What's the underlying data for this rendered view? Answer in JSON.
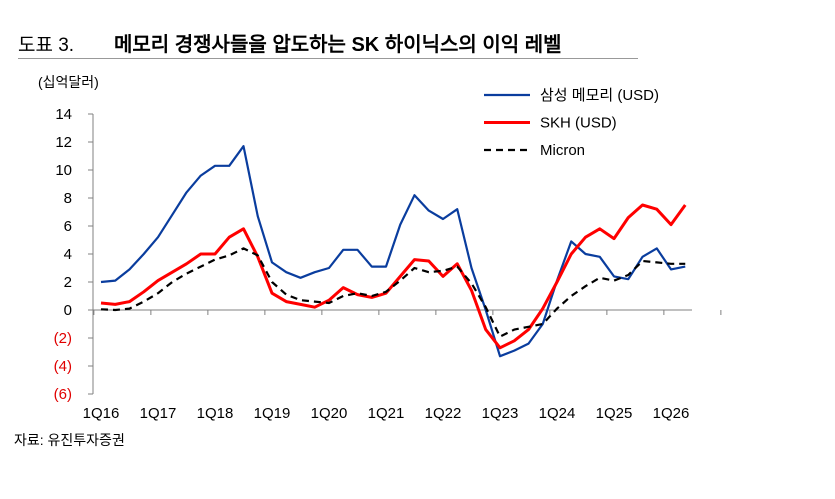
{
  "title": {
    "number": "도표 3.",
    "text": "메모리 경쟁사들을 압도하는 SK 하이닉스의 이익 레벨"
  },
  "unit_label": "(십억달러)",
  "source": "자료: 유진투자증권",
  "chart_data": {
    "type": "line",
    "title": "메모리 경쟁사들을 압도하는 SK 하이닉스의 이익 레벨",
    "ylabel": "(십억달러)",
    "ylim": [
      -6,
      14
    ],
    "yticks": [
      14,
      12,
      10,
      8,
      6,
      4,
      2,
      0,
      -2,
      -4,
      -6
    ],
    "ytick_labels": [
      "14",
      "12",
      "10",
      "8",
      "6",
      "4",
      "2",
      "0",
      "(2)",
      "(4)",
      "(6)"
    ],
    "xtick_labels": [
      "1Q16",
      "1Q17",
      "1Q18",
      "1Q19",
      "1Q20",
      "1Q21",
      "1Q22",
      "1Q23",
      "1Q24",
      "1Q25",
      "1Q26"
    ],
    "x": [
      "1Q16",
      "2Q16",
      "3Q16",
      "4Q16",
      "1Q17",
      "2Q17",
      "3Q17",
      "4Q17",
      "1Q18",
      "2Q18",
      "3Q18",
      "4Q18",
      "1Q19",
      "2Q19",
      "3Q19",
      "4Q19",
      "1Q20",
      "2Q20",
      "3Q20",
      "4Q20",
      "1Q21",
      "2Q21",
      "3Q21",
      "4Q21",
      "1Q22",
      "2Q22",
      "3Q22",
      "4Q22",
      "1Q23",
      "2Q23",
      "3Q23",
      "4Q23",
      "1Q24",
      "2Q24",
      "3Q24",
      "4Q24",
      "1Q25",
      "2Q25",
      "3Q25",
      "4Q25",
      "1Q26",
      "2Q26"
    ],
    "legend_position": "top-right",
    "grid": false,
    "series": [
      {
        "name": "삼성 메모리 (USD)",
        "color": "#0a3d9e",
        "style": "solid",
        "values": [
          2.0,
          2.1,
          2.9,
          4.0,
          5.2,
          6.8,
          8.4,
          9.6,
          10.3,
          10.3,
          11.7,
          6.7,
          3.4,
          2.7,
          2.3,
          2.7,
          3.0,
          4.3,
          4.3,
          3.1,
          3.1,
          6.1,
          8.2,
          7.1,
          6.5,
          7.2,
          3.0,
          0.0,
          -3.3,
          -2.9,
          -2.4,
          -1.0,
          2.1,
          4.9,
          4.0,
          3.8,
          2.4,
          2.2,
          3.8,
          4.4,
          2.9,
          3.1
        ]
      },
      {
        "name": "SKH (USD)",
        "color": "#ff0000",
        "style": "solid",
        "values": [
          0.5,
          0.4,
          0.6,
          1.3,
          2.1,
          2.7,
          3.3,
          4.0,
          4.0,
          5.2,
          5.8,
          3.8,
          1.2,
          0.6,
          0.4,
          0.2,
          0.7,
          1.6,
          1.1,
          0.9,
          1.2,
          2.4,
          3.6,
          3.5,
          2.4,
          3.3,
          1.4,
          -1.4,
          -2.7,
          -2.2,
          -1.4,
          0.1,
          2.0,
          4.0,
          5.2,
          5.8,
          5.1,
          6.6,
          7.5,
          7.2,
          6.1,
          7.5
        ]
      },
      {
        "name": "Micron",
        "color": "#000000",
        "style": "dashed",
        "values": [
          0.05,
          0.0,
          0.1,
          0.6,
          1.2,
          2.0,
          2.6,
          3.1,
          3.6,
          3.9,
          4.4,
          3.9,
          2.0,
          1.1,
          0.7,
          0.6,
          0.5,
          1.0,
          1.2,
          1.0,
          1.3,
          2.1,
          3.0,
          2.7,
          2.8,
          3.1,
          1.9,
          0.2,
          -1.9,
          -1.4,
          -1.2,
          -1.0,
          0.1,
          1.0,
          1.7,
          2.3,
          2.1,
          2.5,
          3.5,
          3.4,
          3.3,
          3.3
        ]
      }
    ]
  }
}
